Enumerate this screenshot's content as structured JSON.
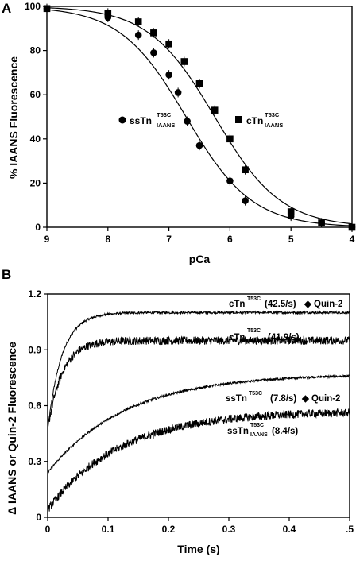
{
  "chart_data": [
    {
      "panel_label": "A",
      "type": "scatter",
      "xlabel": "pCa",
      "ylabel": "% IAANS Fluorescence",
      "xlim": [
        9,
        4
      ],
      "ylim": [
        0,
        100
      ],
      "x_reversed": true,
      "xticks": [
        "9",
        "8",
        "7",
        "6",
        "5",
        "4"
      ],
      "yticks": [
        "0",
        "20",
        "40",
        "60",
        "80",
        "100"
      ],
      "series": [
        {
          "name": "ssTn",
          "name_sup": "T53C",
          "name_sub": "IAANS",
          "marker": "circle",
          "x": [
            9.0,
            8.0,
            7.5,
            7.25,
            7.0,
            6.85,
            6.7,
            6.5,
            6.0,
            5.75,
            5.0,
            4.5,
            4.0
          ],
          "y": [
            99,
            95,
            87,
            79,
            69,
            61,
            48,
            37,
            21,
            12,
            5,
            2,
            0
          ],
          "fit_pCa50": 6.72,
          "fit_nH": 0.8
        },
        {
          "name": "cTn",
          "name_sup": "T53C",
          "name_sub": "IAANS",
          "marker": "square",
          "x": [
            9.0,
            8.0,
            7.5,
            7.25,
            7.0,
            6.75,
            6.5,
            6.25,
            6.0,
            5.75,
            5.0,
            4.5,
            4.0
          ],
          "y": [
            99,
            97,
            93,
            88,
            83,
            75,
            65,
            53,
            40,
            26,
            7,
            2,
            0
          ],
          "fit_pCa50": 6.25,
          "fit_nH": 0.8
        }
      ]
    },
    {
      "panel_label": "B",
      "type": "line",
      "xlabel": "Time (s)",
      "ylabel": "Δ IAANS or Quin-2 Fluorescence",
      "xlim": [
        0,
        0.5
      ],
      "ylim": [
        0,
        1.2
      ],
      "xticks": [
        "0",
        "0.1",
        "0.2",
        "0.3",
        "0.4",
        ".5"
      ],
      "yticks": [
        "0",
        "0.3",
        "0.6",
        "0.9",
        "1.2"
      ],
      "series": [
        {
          "label_main": "cTn",
          "label_sup": "T53C",
          "label_sub": "",
          "label_rate": "(42.5/s)",
          "label_extra": "◆ Quin-2",
          "k": 42.5,
          "y0": 0.47,
          "yinf": 1.1,
          "noise": 0.006
        },
        {
          "label_main": "cTn",
          "label_sup": "T53C",
          "label_sub": "IAANS",
          "label_rate": "(41.9/s)",
          "label_extra": "",
          "k": 41.9,
          "y0": 0.47,
          "yinf": 0.95,
          "noise": 0.022
        },
        {
          "label_main": "ssTn",
          "label_sup": "T53C",
          "label_sub": "",
          "label_rate": "(7.8/s)",
          "label_extra": "◆ Quin-2",
          "k": 7.8,
          "y0": 0.24,
          "yinf": 0.77,
          "noise": 0.006
        },
        {
          "label_main": "ssTn",
          "label_sup": "T53C",
          "label_sub": "IAANS",
          "label_rate": "(8.4/s)",
          "label_extra": "",
          "k": 8.4,
          "y0": 0.04,
          "yinf": 0.57,
          "noise": 0.022
        }
      ]
    }
  ]
}
